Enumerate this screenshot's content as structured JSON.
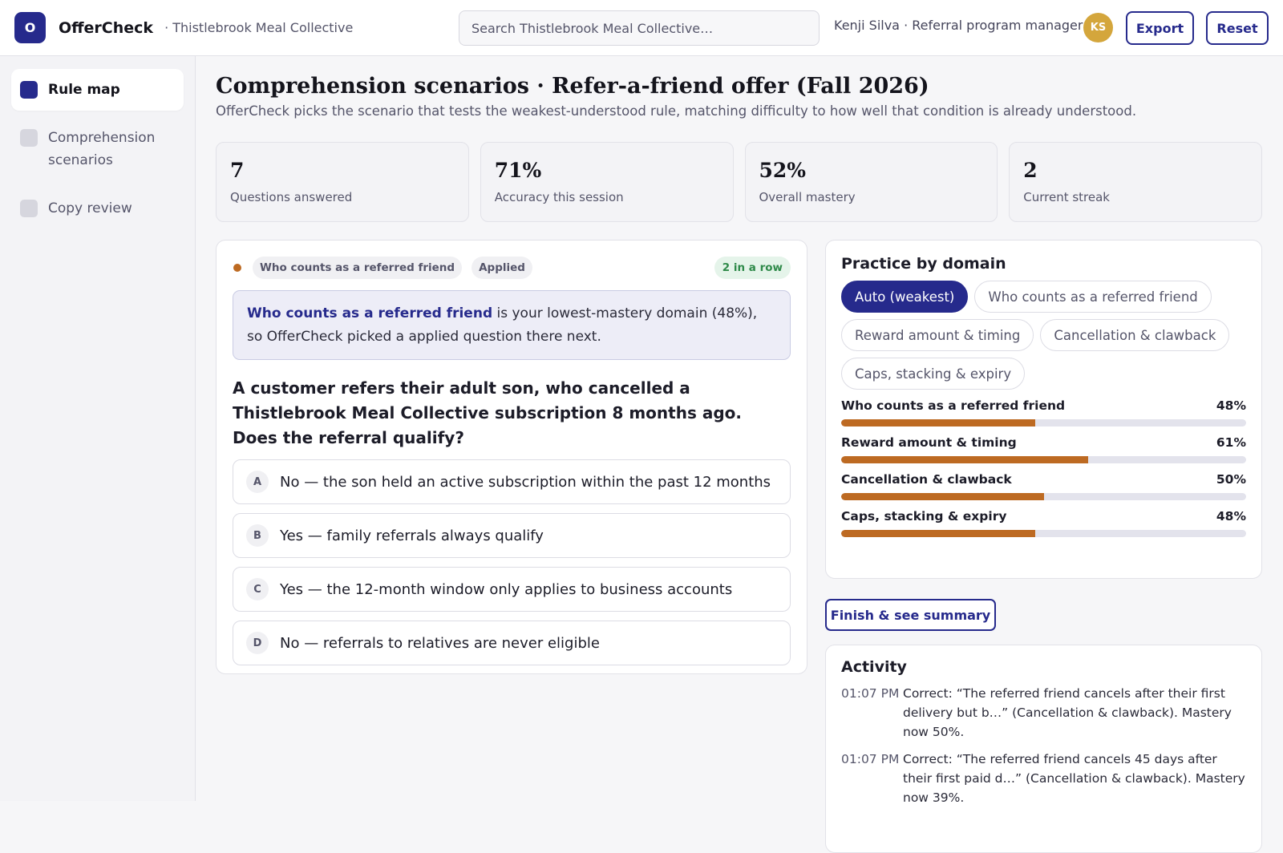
{
  "app": {
    "logo_letter": "O",
    "name": "OfferCheck",
    "org": "· Thistlebrook Meal Collective"
  },
  "search": {
    "placeholder": "Search Thistlebrook Meal Collective…"
  },
  "user": {
    "label": "Kenji Silva · Referral program manager",
    "initials": "KS"
  },
  "toolbar": {
    "export_label": "Export",
    "reset_label": "Reset"
  },
  "sidebar": {
    "items": [
      {
        "label": "Rule map",
        "active": true
      },
      {
        "label": "Comprehension scenarios",
        "active": false
      },
      {
        "label": "Copy review",
        "active": false
      }
    ]
  },
  "page": {
    "title": "Comprehension scenarios · Refer-a-friend offer (Fall 2026)",
    "subtitle": "OfferCheck picks the scenario that tests the weakest-understood rule, matching difficulty to how well that condition is already understood."
  },
  "stats": [
    {
      "value": "7",
      "label": "Questions answered"
    },
    {
      "value": "71%",
      "label": "Accuracy this session"
    },
    {
      "value": "52%",
      "label": "Overall mastery"
    },
    {
      "value": "2",
      "label": "Current streak"
    }
  ],
  "question": {
    "domain_tag": "Who counts as a referred friend",
    "level_tag": "Applied",
    "streak": "2 in a row",
    "reason_domain": "Who counts as a referred friend",
    "reason_rest": " is your lowest-mastery domain (48%), so OfferCheck picked a applied question there next.",
    "text": "A customer refers their adult son, who cancelled a Thistlebrook Meal Collective subscription 8 months ago. Does the referral qualify?",
    "options": [
      {
        "letter": "A",
        "text": "No — the son held an active subscription within the past 12 months"
      },
      {
        "letter": "B",
        "text": "Yes — family referrals always qualify"
      },
      {
        "letter": "C",
        "text": "Yes — the 12-month window only applies to business accounts"
      },
      {
        "letter": "D",
        "text": "No — referrals to relatives are never eligible"
      }
    ]
  },
  "practice": {
    "title": "Practice by domain",
    "chips": [
      {
        "label": "Auto (weakest)",
        "selected": true
      },
      {
        "label": "Who counts as a referred friend",
        "selected": false
      },
      {
        "label": "Reward amount & timing",
        "selected": false
      },
      {
        "label": "Cancellation & clawback",
        "selected": false
      },
      {
        "label": "Caps, stacking & expiry",
        "selected": false
      }
    ],
    "domains": [
      {
        "name": "Who counts as a referred friend",
        "pct_label": "48%",
        "mastery": 0.48
      },
      {
        "name": "Reward amount & timing",
        "pct_label": "61%",
        "mastery": 0.61
      },
      {
        "name": "Cancellation & clawback",
        "pct_label": "50%",
        "mastery": 0.5
      },
      {
        "name": "Caps, stacking & expiry",
        "pct_label": "48%",
        "mastery": 0.48
      }
    ],
    "bar_color": "#bd6a22"
  },
  "finish_label": "Finish & see summary",
  "activity": {
    "title": "Activity",
    "items": [
      {
        "time": "01:07 PM",
        "text": "Correct: “The referred friend cancels after their first delivery but b…” (Cancellation & clawback). Mastery now 50%."
      },
      {
        "time": "01:07 PM",
        "text": "Correct: “The referred friend cancels 45 days after their first paid d…” (Cancellation & clawback). Mastery now 39%."
      }
    ]
  },
  "colors": {
    "accent": "#262a8c",
    "progress": "#bd6a22",
    "success": "#2f8a4a",
    "avatar": "#d4a63c"
  }
}
